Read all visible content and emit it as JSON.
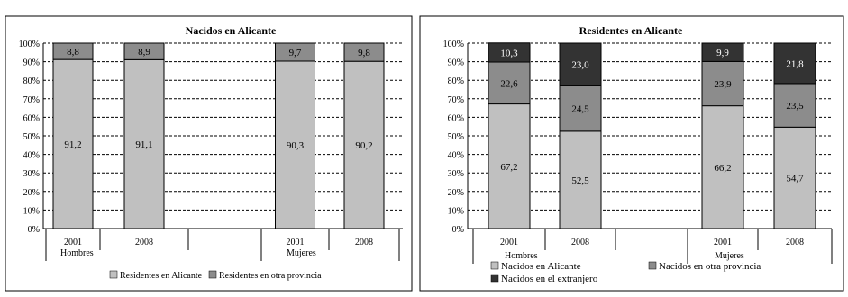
{
  "chart_data": [
    {
      "type": "bar",
      "stacked": true,
      "percent": true,
      "title": "Nacidos en Alicante",
      "yticks": [
        "0%",
        "10%",
        "20%",
        "30%",
        "40%",
        "50%",
        "60%",
        "70%",
        "80%",
        "90%",
        "100%"
      ],
      "ylim": [
        0,
        100
      ],
      "grid": "dashed horizontal",
      "groups": [
        {
          "label": "Hombres",
          "categories": [
            "2001",
            "2008"
          ]
        },
        {
          "label": "Mujeres",
          "categories": [
            "2001",
            "2008"
          ]
        }
      ],
      "categories": [
        "2001",
        "2008",
        "",
        "2001",
        "2008"
      ],
      "series": [
        {
          "name": "Residentes en Alicante",
          "color": "#c0c0c0",
          "values": [
            91.2,
            91.1,
            null,
            90.3,
            90.2
          ],
          "labels": [
            "91,2",
            "91,1",
            "",
            "90,3",
            "90,2"
          ]
        },
        {
          "name": "Residentes en otra provincia",
          "color": "#8c8c8c",
          "values": [
            8.8,
            8.9,
            null,
            9.7,
            9.8
          ],
          "labels": [
            "8,8",
            "8,9",
            "",
            "9,7",
            "9,8"
          ]
        }
      ],
      "legend_position": "bottom"
    },
    {
      "type": "bar",
      "stacked": true,
      "percent": true,
      "title": "Residentes en Alicante",
      "yticks": [
        "0%",
        "10%",
        "20%",
        "30%",
        "40%",
        "50%",
        "60%",
        "70%",
        "80%",
        "90%",
        "100%"
      ],
      "ylim": [
        0,
        100
      ],
      "grid": "dashed horizontal",
      "groups": [
        {
          "label": "Hombres",
          "categories": [
            "2001",
            "2008"
          ]
        },
        {
          "label": "Mujeres",
          "categories": [
            "2001",
            "2008"
          ]
        }
      ],
      "categories": [
        "2001",
        "2008",
        "",
        "2001",
        "2008"
      ],
      "series": [
        {
          "name": "Nacidos en Alicante",
          "color": "#c0c0c0",
          "values": [
            67.2,
            52.5,
            null,
            66.2,
            54.7
          ],
          "labels": [
            "67,2",
            "52,5",
            "",
            "66,2",
            "54,7"
          ]
        },
        {
          "name": "Nacidos en otra provincia",
          "color": "#8c8c8c",
          "values": [
            22.6,
            24.5,
            null,
            23.9,
            23.5
          ],
          "labels": [
            "22,6",
            "24,5",
            "",
            "23,9",
            "23,5"
          ]
        },
        {
          "name": "Nacidos en el extranjero",
          "color": "#333333",
          "values": [
            10.3,
            23.0,
            null,
            9.9,
            21.8
          ],
          "labels": [
            "10,3",
            "23,0",
            "",
            "9,9",
            "21,8"
          ]
        }
      ],
      "legend_position": "bottom"
    }
  ]
}
